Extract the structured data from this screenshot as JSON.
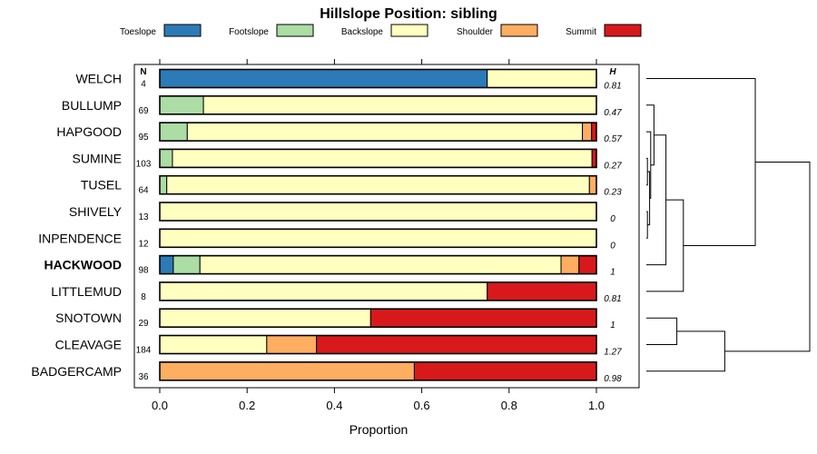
{
  "chart_data": {
    "type": "bar",
    "stacked": true,
    "orientation": "horizontal",
    "title": "Hillslope Position: sibling",
    "xlabel": "Proportion",
    "xlim": [
      0,
      1
    ],
    "xticks": [
      "0.0",
      "0.2",
      "0.4",
      "0.6",
      "0.8",
      "1.0"
    ],
    "n_header": "N",
    "h_header": "H",
    "legend_position": "top",
    "series": [
      {
        "name": "Toeslope",
        "color": "#2c7bb6"
      },
      {
        "name": "Footslope",
        "color": "#abdda4"
      },
      {
        "name": "Backslope",
        "color": "#ffffbf"
      },
      {
        "name": "Shoulder",
        "color": "#fdae61"
      },
      {
        "name": "Summit",
        "color": "#d7191c"
      }
    ],
    "rows": [
      {
        "label": "WELCH",
        "n": "4",
        "h": "0.81",
        "bold": false,
        "values": [
          0.75,
          0,
          0.25,
          0,
          0
        ]
      },
      {
        "label": "BULLUMP",
        "n": "69",
        "h": "0.47",
        "bold": false,
        "values": [
          0,
          0.1,
          0.9,
          0,
          0
        ]
      },
      {
        "label": "HAPGOOD",
        "n": "95",
        "h": "0.57",
        "bold": false,
        "values": [
          0,
          0.063,
          0.905,
          0.021,
          0.011
        ]
      },
      {
        "label": "SUMINE",
        "n": "103",
        "h": "0.27",
        "bold": false,
        "values": [
          0,
          0.029,
          0.961,
          0,
          0.01
        ]
      },
      {
        "label": "TUSEL",
        "n": "64",
        "h": "0.23",
        "bold": false,
        "values": [
          0,
          0.016,
          0.968,
          0.016,
          0
        ]
      },
      {
        "label": "SHIVELY",
        "n": "13",
        "h": "0",
        "bold": false,
        "values": [
          0,
          0,
          1,
          0,
          0
        ]
      },
      {
        "label": "INPENDENCE",
        "n": "12",
        "h": "0",
        "bold": false,
        "values": [
          0,
          0,
          1,
          0,
          0
        ]
      },
      {
        "label": "HACKWOOD",
        "n": "98",
        "h": "1",
        "bold": true,
        "values": [
          0.031,
          0.061,
          0.827,
          0.041,
          0.04
        ]
      },
      {
        "label": "LITTLEMUD",
        "n": "8",
        "h": "0.81",
        "bold": false,
        "values": [
          0,
          0,
          0.75,
          0,
          0.25
        ]
      },
      {
        "label": "SNOTOWN",
        "n": "29",
        "h": "1",
        "bold": false,
        "values": [
          0,
          0,
          0.483,
          0,
          0.517
        ]
      },
      {
        "label": "CLEAVAGE",
        "n": "184",
        "h": "1.27",
        "bold": false,
        "values": [
          0,
          0,
          0.245,
          0.114,
          0.641
        ]
      },
      {
        "label": "BADGERCAMP",
        "n": "36",
        "h": "0.98",
        "bold": false,
        "values": [
          0,
          0,
          0,
          0.583,
          0.417
        ]
      }
    ],
    "dendrogram": {
      "leaves_top_to_bottom": [
        "WELCH",
        "BULLUMP",
        "HAPGOOD",
        "SUMINE",
        "TUSEL",
        "SHIVELY",
        "INPENDENCE",
        "HACKWOOD",
        "LITTLEMUD",
        "SNOTOWN",
        "CLEAVAGE",
        "BADGERCAMP"
      ],
      "merges": [
        {
          "a": "SUMINE",
          "b": "TUSEL",
          "height": 0.01
        },
        {
          "a": "SHIVELY",
          "b": "INPENDENCE",
          "height": 0.01
        },
        {
          "a": "SUMINE+TUSEL",
          "b": "SHIVELY+INPENDENCE",
          "height": 0.03
        },
        {
          "a": "HAPGOOD",
          "b": "SUMINE+TUSEL+SHIVELY+INPENDENCE",
          "height": 0.04
        },
        {
          "a": "BULLUMP",
          "b": "HAPGOOD+SUMINE+TUSEL+SHIVELY+INPENDENCE",
          "height": 0.07
        },
        {
          "a": "BULLUMP+HAPGOOD+SUMINE+TUSEL+SHIVELY+INPENDENCE",
          "b": "HACKWOOD",
          "height": 0.18
        },
        {
          "a": "BULLUMP+HAPGOOD+SUMINE+TUSEL+SHIVELY+INPENDENCE+HACKWOOD",
          "b": "LITTLEMUD",
          "height": 0.34
        },
        {
          "a": "WELCH",
          "b": "BULLUMP+HAPGOOD+SUMINE+TUSEL+SHIVELY+INPENDENCE+HACKWOOD+LITTLEMUD",
          "height": 1.0
        },
        {
          "a": "SNOTOWN",
          "b": "CLEAVAGE",
          "height": 0.28
        },
        {
          "a": "SNOTOWN+CLEAVAGE",
          "b": "BADGERCAMP",
          "height": 0.72
        },
        {
          "a": "WELCH+BULLUMP+HAPGOOD+SUMINE+TUSEL+SHIVELY+INPENDENCE+HACKWOOD+LITTLEMUD",
          "b": "SNOTOWN+CLEAVAGE+BADGERCAMP",
          "height": 1.5
        }
      ]
    }
  }
}
